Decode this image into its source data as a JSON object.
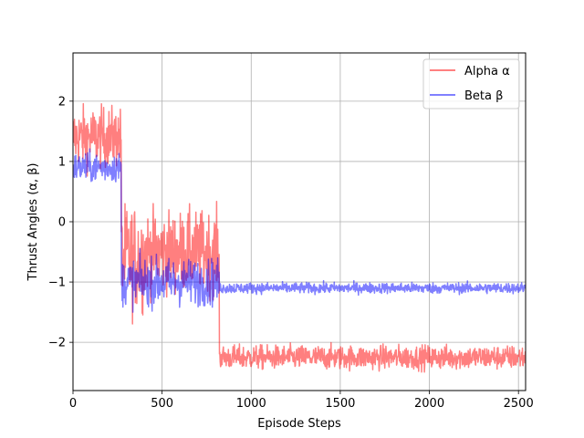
{
  "chart_data": {
    "type": "line",
    "title": "",
    "xlabel": "Episode Steps",
    "ylabel": "Thrust Angles (α, β)",
    "xlim": [
      0,
      2540
    ],
    "ylim": [
      -2.8,
      2.8
    ],
    "xticks": [
      0,
      500,
      1000,
      1500,
      2000,
      2500
    ],
    "xtick_labels": [
      "0",
      "500",
      "1000",
      "1500",
      "2000",
      "2500"
    ],
    "yticks": [
      -2,
      -1,
      0,
      1,
      2
    ],
    "ytick_labels": [
      "−2",
      "−1",
      "0",
      "1",
      "2"
    ],
    "grid": true,
    "legend_position": "top-right",
    "legend": [
      {
        "label": "Alpha α",
        "color": "#ff8080"
      },
      {
        "label": "Beta β",
        "color": "#8080ff"
      }
    ],
    "series": [
      {
        "name": "Alpha α",
        "color": "#ff0000",
        "alpha": 0.5,
        "approx_segments": [
          {
            "x_start": 0,
            "x_end": 270,
            "mean": 1.4,
            "noise": 0.45
          },
          {
            "x_start": 270,
            "x_end": 400,
            "mean": -0.6,
            "noise": 0.8
          },
          {
            "x_start": 400,
            "x_end": 820,
            "mean": -0.5,
            "noise": 0.6
          },
          {
            "x_start": 820,
            "x_end": 2540,
            "mean": -2.25,
            "noise": 0.18
          }
        ]
      },
      {
        "name": "Beta β",
        "color": "#0000ff",
        "alpha": 0.5,
        "approx_segments": [
          {
            "x_start": 0,
            "x_end": 270,
            "mean": 0.9,
            "noise": 0.22
          },
          {
            "x_start": 270,
            "x_end": 820,
            "mean": -1.0,
            "noise": 0.35
          },
          {
            "x_start": 820,
            "x_end": 2540,
            "mean": -1.1,
            "noise": 0.08
          }
        ]
      }
    ]
  }
}
